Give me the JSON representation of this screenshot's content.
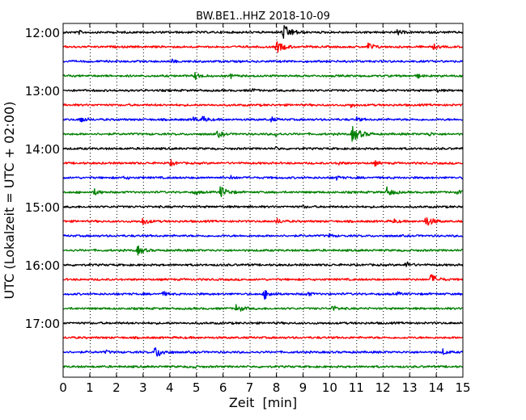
{
  "chart_data": {
    "type": "line",
    "title": "BW.BE1..HHZ 2018-10-09",
    "xlabel": "Zeit  [min]",
    "ylabel": "UTC (Lokalzeit = UTC + 02:00)",
    "xlim": [
      0,
      15
    ],
    "x_ticks": [
      "0",
      "1",
      "2",
      "3",
      "4",
      "5",
      "6",
      "7",
      "8",
      "9",
      "10",
      "11",
      "12",
      "13",
      "14",
      "15"
    ],
    "y_ticks": [
      "12:00",
      "13:00",
      "14:00",
      "15:00",
      "16:00",
      "17:00"
    ],
    "y_tick_every_n_traces": 4,
    "vertical_grid": "dotted",
    "trace_interval_min": 15,
    "trace_colors": [
      "#000000",
      "#ff0000",
      "#0000ff",
      "#008000"
    ],
    "series": [
      {
        "start": "12:00",
        "events": [
          {
            "t": 8.25,
            "a": 1.0
          },
          {
            "t": 12.55,
            "a": 0.35
          },
          {
            "t": 0.6,
            "a": 0.2
          }
        ]
      },
      {
        "start": "12:15",
        "events": [
          {
            "t": 8.0,
            "a": 0.8
          },
          {
            "t": 11.45,
            "a": 0.55
          },
          {
            "t": 13.9,
            "a": 0.3
          }
        ]
      },
      {
        "start": "12:30",
        "events": [
          {
            "t": 4.1,
            "a": 0.2
          },
          {
            "t": 10.6,
            "a": 0.2
          }
        ]
      },
      {
        "start": "12:45",
        "events": [
          {
            "t": 4.95,
            "a": 0.45
          },
          {
            "t": 6.3,
            "a": 0.25
          },
          {
            "t": 13.3,
            "a": 0.25
          }
        ]
      },
      {
        "start": "13:00",
        "events": [
          {
            "t": 7.1,
            "a": 0.2
          },
          {
            "t": 14.0,
            "a": 0.2
          }
        ]
      },
      {
        "start": "13:15",
        "events": [
          {
            "t": 10.8,
            "a": 0.3
          }
        ]
      },
      {
        "start": "13:30",
        "events": [
          {
            "t": 0.65,
            "a": 0.45
          },
          {
            "t": 4.9,
            "a": 0.35
          },
          {
            "t": 5.25,
            "a": 0.4
          },
          {
            "t": 7.8,
            "a": 0.3
          },
          {
            "t": 11.0,
            "a": 0.3
          }
        ]
      },
      {
        "start": "13:45",
        "events": [
          {
            "t": 5.8,
            "a": 0.45
          },
          {
            "t": 7.95,
            "a": 0.3
          },
          {
            "t": 10.85,
            "a": 1.0
          },
          {
            "t": 13.7,
            "a": 0.3
          }
        ]
      },
      {
        "start": "14:00",
        "events": [
          {
            "t": 8.0,
            "a": 0.2
          }
        ]
      },
      {
        "start": "14:15",
        "events": [
          {
            "t": 4.05,
            "a": 0.35
          },
          {
            "t": 10.3,
            "a": 0.3
          },
          {
            "t": 11.7,
            "a": 0.3
          }
        ]
      },
      {
        "start": "14:30",
        "events": [
          {
            "t": 2.3,
            "a": 0.25
          },
          {
            "t": 6.3,
            "a": 0.25
          },
          {
            "t": 10.2,
            "a": 0.35
          }
        ]
      },
      {
        "start": "14:45",
        "events": [
          {
            "t": 1.15,
            "a": 0.45
          },
          {
            "t": 4.95,
            "a": 0.3
          },
          {
            "t": 5.9,
            "a": 0.75
          },
          {
            "t": 12.15,
            "a": 0.6
          },
          {
            "t": 14.8,
            "a": 0.25
          }
        ]
      },
      {
        "start": "15:00",
        "events": [
          {
            "t": 9.0,
            "a": 0.15
          }
        ]
      },
      {
        "start": "15:15",
        "events": [
          {
            "t": 2.95,
            "a": 0.55
          },
          {
            "t": 8.0,
            "a": 0.4
          },
          {
            "t": 12.4,
            "a": 0.3
          },
          {
            "t": 13.6,
            "a": 0.75
          }
        ]
      },
      {
        "start": "15:30",
        "events": [
          {
            "t": 10.0,
            "a": 0.25
          }
        ]
      },
      {
        "start": "15:45",
        "events": [
          {
            "t": 2.8,
            "a": 0.6
          }
        ]
      },
      {
        "start": "16:00",
        "events": [
          {
            "t": 12.85,
            "a": 0.45
          }
        ]
      },
      {
        "start": "16:15",
        "events": [
          {
            "t": 13.8,
            "a": 0.7
          }
        ]
      },
      {
        "start": "16:30",
        "events": [
          {
            "t": 3.75,
            "a": 0.3
          },
          {
            "t": 7.55,
            "a": 0.65
          },
          {
            "t": 9.15,
            "a": 0.3
          },
          {
            "t": 12.55,
            "a": 0.2
          }
        ]
      },
      {
        "start": "16:45",
        "events": [
          {
            "t": 6.5,
            "a": 0.55
          },
          {
            "t": 10.1,
            "a": 0.4
          }
        ]
      },
      {
        "start": "17:00",
        "events": []
      },
      {
        "start": "17:15",
        "events": []
      },
      {
        "start": "17:30",
        "events": [
          {
            "t": 1.6,
            "a": 0.2
          },
          {
            "t": 3.45,
            "a": 0.8
          },
          {
            "t": 14.25,
            "a": 0.35
          }
        ]
      },
      {
        "start": "17:45",
        "events": [
          {
            "t": 4.9,
            "a": 0.15
          }
        ]
      }
    ]
  }
}
